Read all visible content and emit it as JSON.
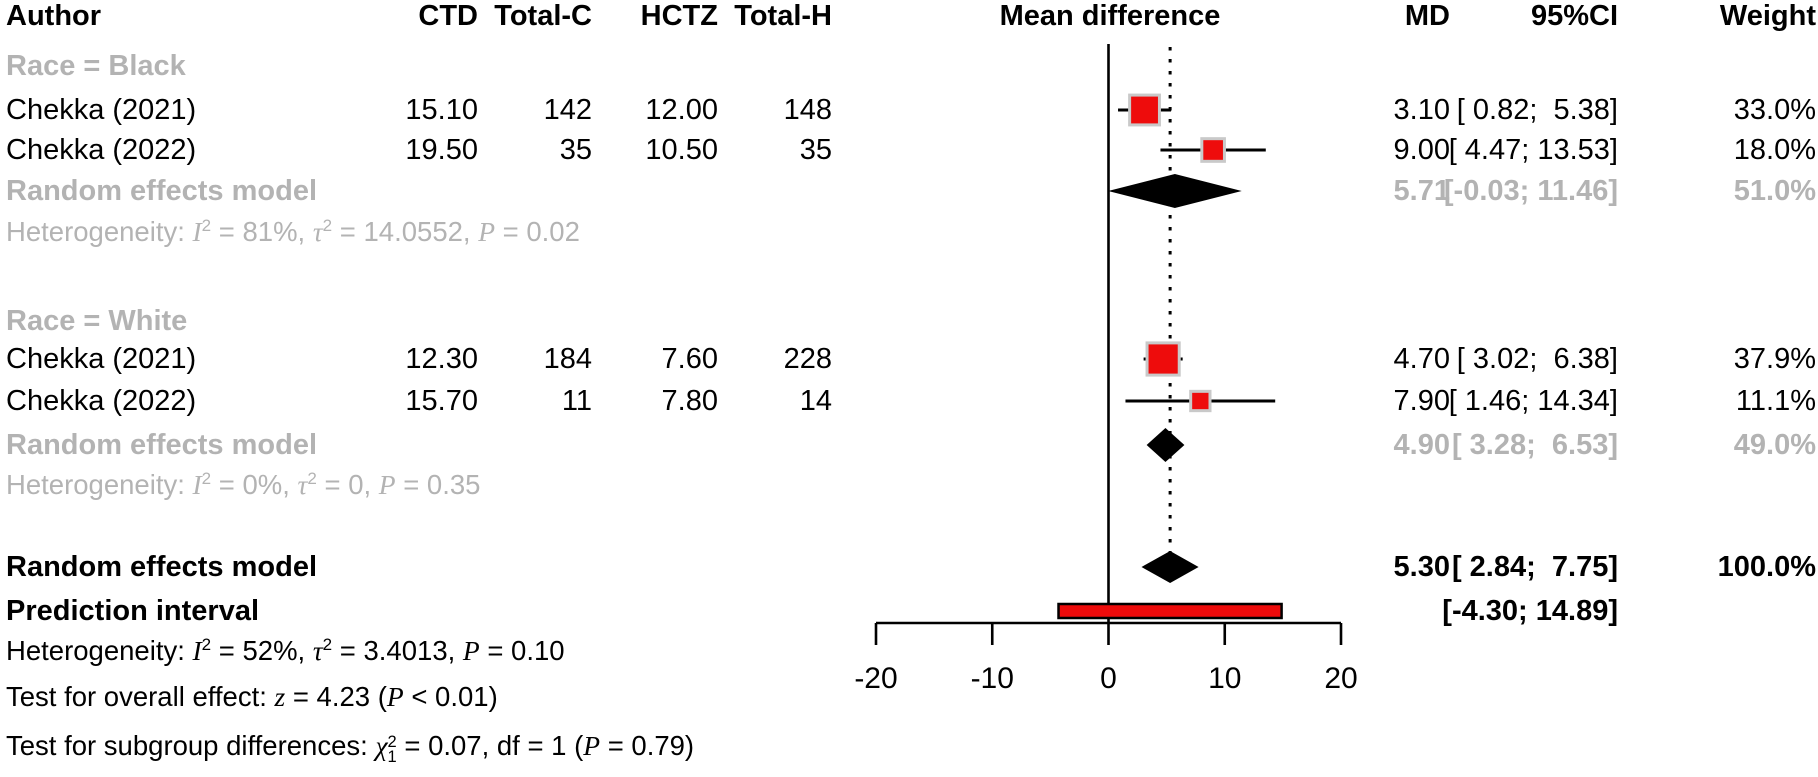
{
  "header": {
    "author": "Author",
    "ctd": "CTD",
    "total_c": "Total-C",
    "hctz": "HCTZ",
    "total_h": "Total-H",
    "mean_difference": "Mean difference",
    "md": "MD",
    "ci": "95%CI",
    "weight": "Weight"
  },
  "colors": {
    "square_fill": "#ee0c0c",
    "square_border": "#c9c9c9",
    "ci_line": "#000000",
    "diamond": "#000000",
    "prediction_fill": "#ee0c0c",
    "prediction_border": "#000000",
    "subtle_text": "#b3b3b3",
    "text": "#000000",
    "axis": "#000000"
  },
  "chart_data": {
    "type": "forest_plot",
    "effect_measure": "Mean difference",
    "xlim": [
      -20,
      20
    ],
    "axis_ticks": [
      -20,
      -10,
      0,
      10,
      20
    ],
    "axis_tick_labels": [
      "-20",
      "-10",
      "0",
      "10",
      "20"
    ],
    "null_line": 0,
    "overall_effect_line": 5.3,
    "groups": [
      {
        "label": "Race = Black",
        "studies": [
          {
            "author": "Chekka (2021)",
            "ctd": "15.10",
            "total_c": "142",
            "hctz": "12.00",
            "total_h": "148",
            "md": 3.1,
            "ci_low": 0.82,
            "ci_high": 5.38,
            "weight": 33.0,
            "md_text": "3.10",
            "ci_text": "[ 0.82;  5.38]",
            "weight_text": "33.0%"
          },
          {
            "author": "Chekka (2022)",
            "ctd": "19.50",
            "total_c": "35",
            "hctz": "10.50",
            "total_h": "35",
            "md": 9.0,
            "ci_low": 4.47,
            "ci_high": 13.53,
            "weight": 18.0,
            "md_text": "9.00",
            "ci_text": "[ 4.47; 13.53]",
            "weight_text": "18.0%"
          }
        ],
        "pooled": {
          "label": "Random effects model",
          "md": 5.71,
          "ci_low": -0.03,
          "ci_high": 11.46,
          "md_text": "5.71",
          "ci_text": "[-0.03; 11.46]",
          "weight_text": "51.0%"
        },
        "heterogeneity": [
          {
            "t": "Heterogeneity: "
          },
          {
            "t": "I",
            "i": true
          },
          {
            "t": "2",
            "sup": true
          },
          {
            "t": " = 81%, "
          },
          {
            "t": "τ",
            "i": true
          },
          {
            "t": "2",
            "sup": true
          },
          {
            "t": " = 14.0552, "
          },
          {
            "t": "P",
            "i": true
          },
          {
            "t": " = 0.02"
          }
        ]
      },
      {
        "label": "Race = White",
        "studies": [
          {
            "author": "Chekka (2021)",
            "ctd": "12.30",
            "total_c": "184",
            "hctz": "7.60",
            "total_h": "228",
            "md": 4.7,
            "ci_low": 3.02,
            "ci_high": 6.38,
            "weight": 37.9,
            "md_text": "4.70",
            "ci_text": "[ 3.02;  6.38]",
            "weight_text": "37.9%"
          },
          {
            "author": "Chekka (2022)",
            "ctd": "15.70",
            "total_c": "11",
            "hctz": "7.80",
            "total_h": "14",
            "md": 7.9,
            "ci_low": 1.46,
            "ci_high": 14.34,
            "weight": 11.1,
            "md_text": "7.90",
            "ci_text": "[ 1.46; 14.34]",
            "weight_text": "11.1%"
          }
        ],
        "pooled": {
          "label": "Random effects model",
          "md": 4.9,
          "ci_low": 3.28,
          "ci_high": 6.53,
          "md_text": "4.90",
          "ci_text": "[ 3.28;  6.53]",
          "weight_text": "49.0%"
        },
        "heterogeneity": [
          {
            "t": "Heterogeneity: "
          },
          {
            "t": "I",
            "i": true
          },
          {
            "t": "2",
            "sup": true
          },
          {
            "t": " = 0%, "
          },
          {
            "t": "τ",
            "i": true
          },
          {
            "t": "2",
            "sup": true
          },
          {
            "t": " = 0, "
          },
          {
            "t": "P",
            "i": true
          },
          {
            "t": " = 0.35"
          }
        ]
      }
    ],
    "overall": {
      "label": "Random effects model",
      "md": 5.3,
      "ci_low": 2.84,
      "ci_high": 7.75,
      "md_text": "5.30",
      "ci_text": "[ 2.84;  7.75]",
      "weight_text": "100.0%"
    },
    "prediction": {
      "label": "Prediction interval",
      "ci_low": -4.3,
      "ci_high": 14.89,
      "ci_text": "[-4.30; 14.89]"
    }
  },
  "footer": {
    "heterogeneity_overall": [
      {
        "t": "Heterogeneity: "
      },
      {
        "t": "I",
        "i": true
      },
      {
        "t": "2",
        "sup": true
      },
      {
        "t": " = 52%, "
      },
      {
        "t": "τ",
        "i": true
      },
      {
        "t": "2",
        "sup": true
      },
      {
        "t": " = 3.4013, "
      },
      {
        "t": "P",
        "i": true
      },
      {
        "t": " = 0.10"
      }
    ],
    "test_overall": [
      {
        "t": "Test for overall effect: "
      },
      {
        "t": "z",
        "i": true
      },
      {
        "t": " = 4.23 ("
      },
      {
        "t": "P",
        "i": true
      },
      {
        "t": " < 0.01)"
      }
    ],
    "test_subgroup": [
      {
        "t": "Test for subgroup differences: "
      },
      {
        "t": "χ",
        "i": true
      },
      {
        "stack": [
          "2",
          "1"
        ]
      },
      {
        "t": " = 0.07, df = 1 ("
      },
      {
        "t": "P",
        "i": true
      },
      {
        "t": " = 0.79)"
      }
    ]
  }
}
